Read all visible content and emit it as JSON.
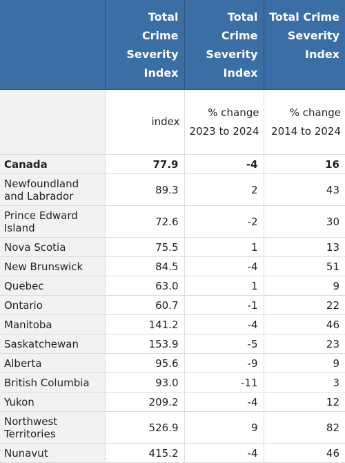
{
  "header": {
    "columns": [
      "Total Crime Severity Index",
      "Total Crime Severity Index",
      "Total Crime Severity Index"
    ]
  },
  "subheader": {
    "columns": [
      "index",
      "% change 2023 to 2024",
      "% change 2014 to 2024"
    ]
  },
  "rows": [
    {
      "geo": "Canada",
      "index": "77.9",
      "chg_1yr": "-4",
      "chg_10yr": "16"
    },
    {
      "geo": "Newfoundland and Labrador",
      "index": "89.3",
      "chg_1yr": "2",
      "chg_10yr": "43"
    },
    {
      "geo": "Prince Edward Island",
      "index": "72.6",
      "chg_1yr": "-2",
      "chg_10yr": "30"
    },
    {
      "geo": "Nova Scotia",
      "index": "75.5",
      "chg_1yr": "1",
      "chg_10yr": "13"
    },
    {
      "geo": "New Brunswick",
      "index": "84.5",
      "chg_1yr": "-4",
      "chg_10yr": "51"
    },
    {
      "geo": "Quebec",
      "index": "63.0",
      "chg_1yr": "1",
      "chg_10yr": "9"
    },
    {
      "geo": "Ontario",
      "index": "60.7",
      "chg_1yr": "-1",
      "chg_10yr": "22"
    },
    {
      "geo": "Manitoba",
      "index": "141.2",
      "chg_1yr": "-4",
      "chg_10yr": "46"
    },
    {
      "geo": "Saskatchewan",
      "index": "153.9",
      "chg_1yr": "-5",
      "chg_10yr": "23"
    },
    {
      "geo": "Alberta",
      "index": "95.6",
      "chg_1yr": "-9",
      "chg_10yr": "9"
    },
    {
      "geo": "British Columbia",
      "index": "93.0",
      "chg_1yr": "-11",
      "chg_10yr": "3"
    },
    {
      "geo": "Yukon",
      "index": "209.2",
      "chg_1yr": "-4",
      "chg_10yr": "12"
    },
    {
      "geo": "Northwest Territories",
      "index": "526.9",
      "chg_1yr": "9",
      "chg_10yr": "82"
    },
    {
      "geo": "Nunavut",
      "index": "415.2",
      "chg_1yr": "-4",
      "chg_10yr": "46"
    }
  ]
}
